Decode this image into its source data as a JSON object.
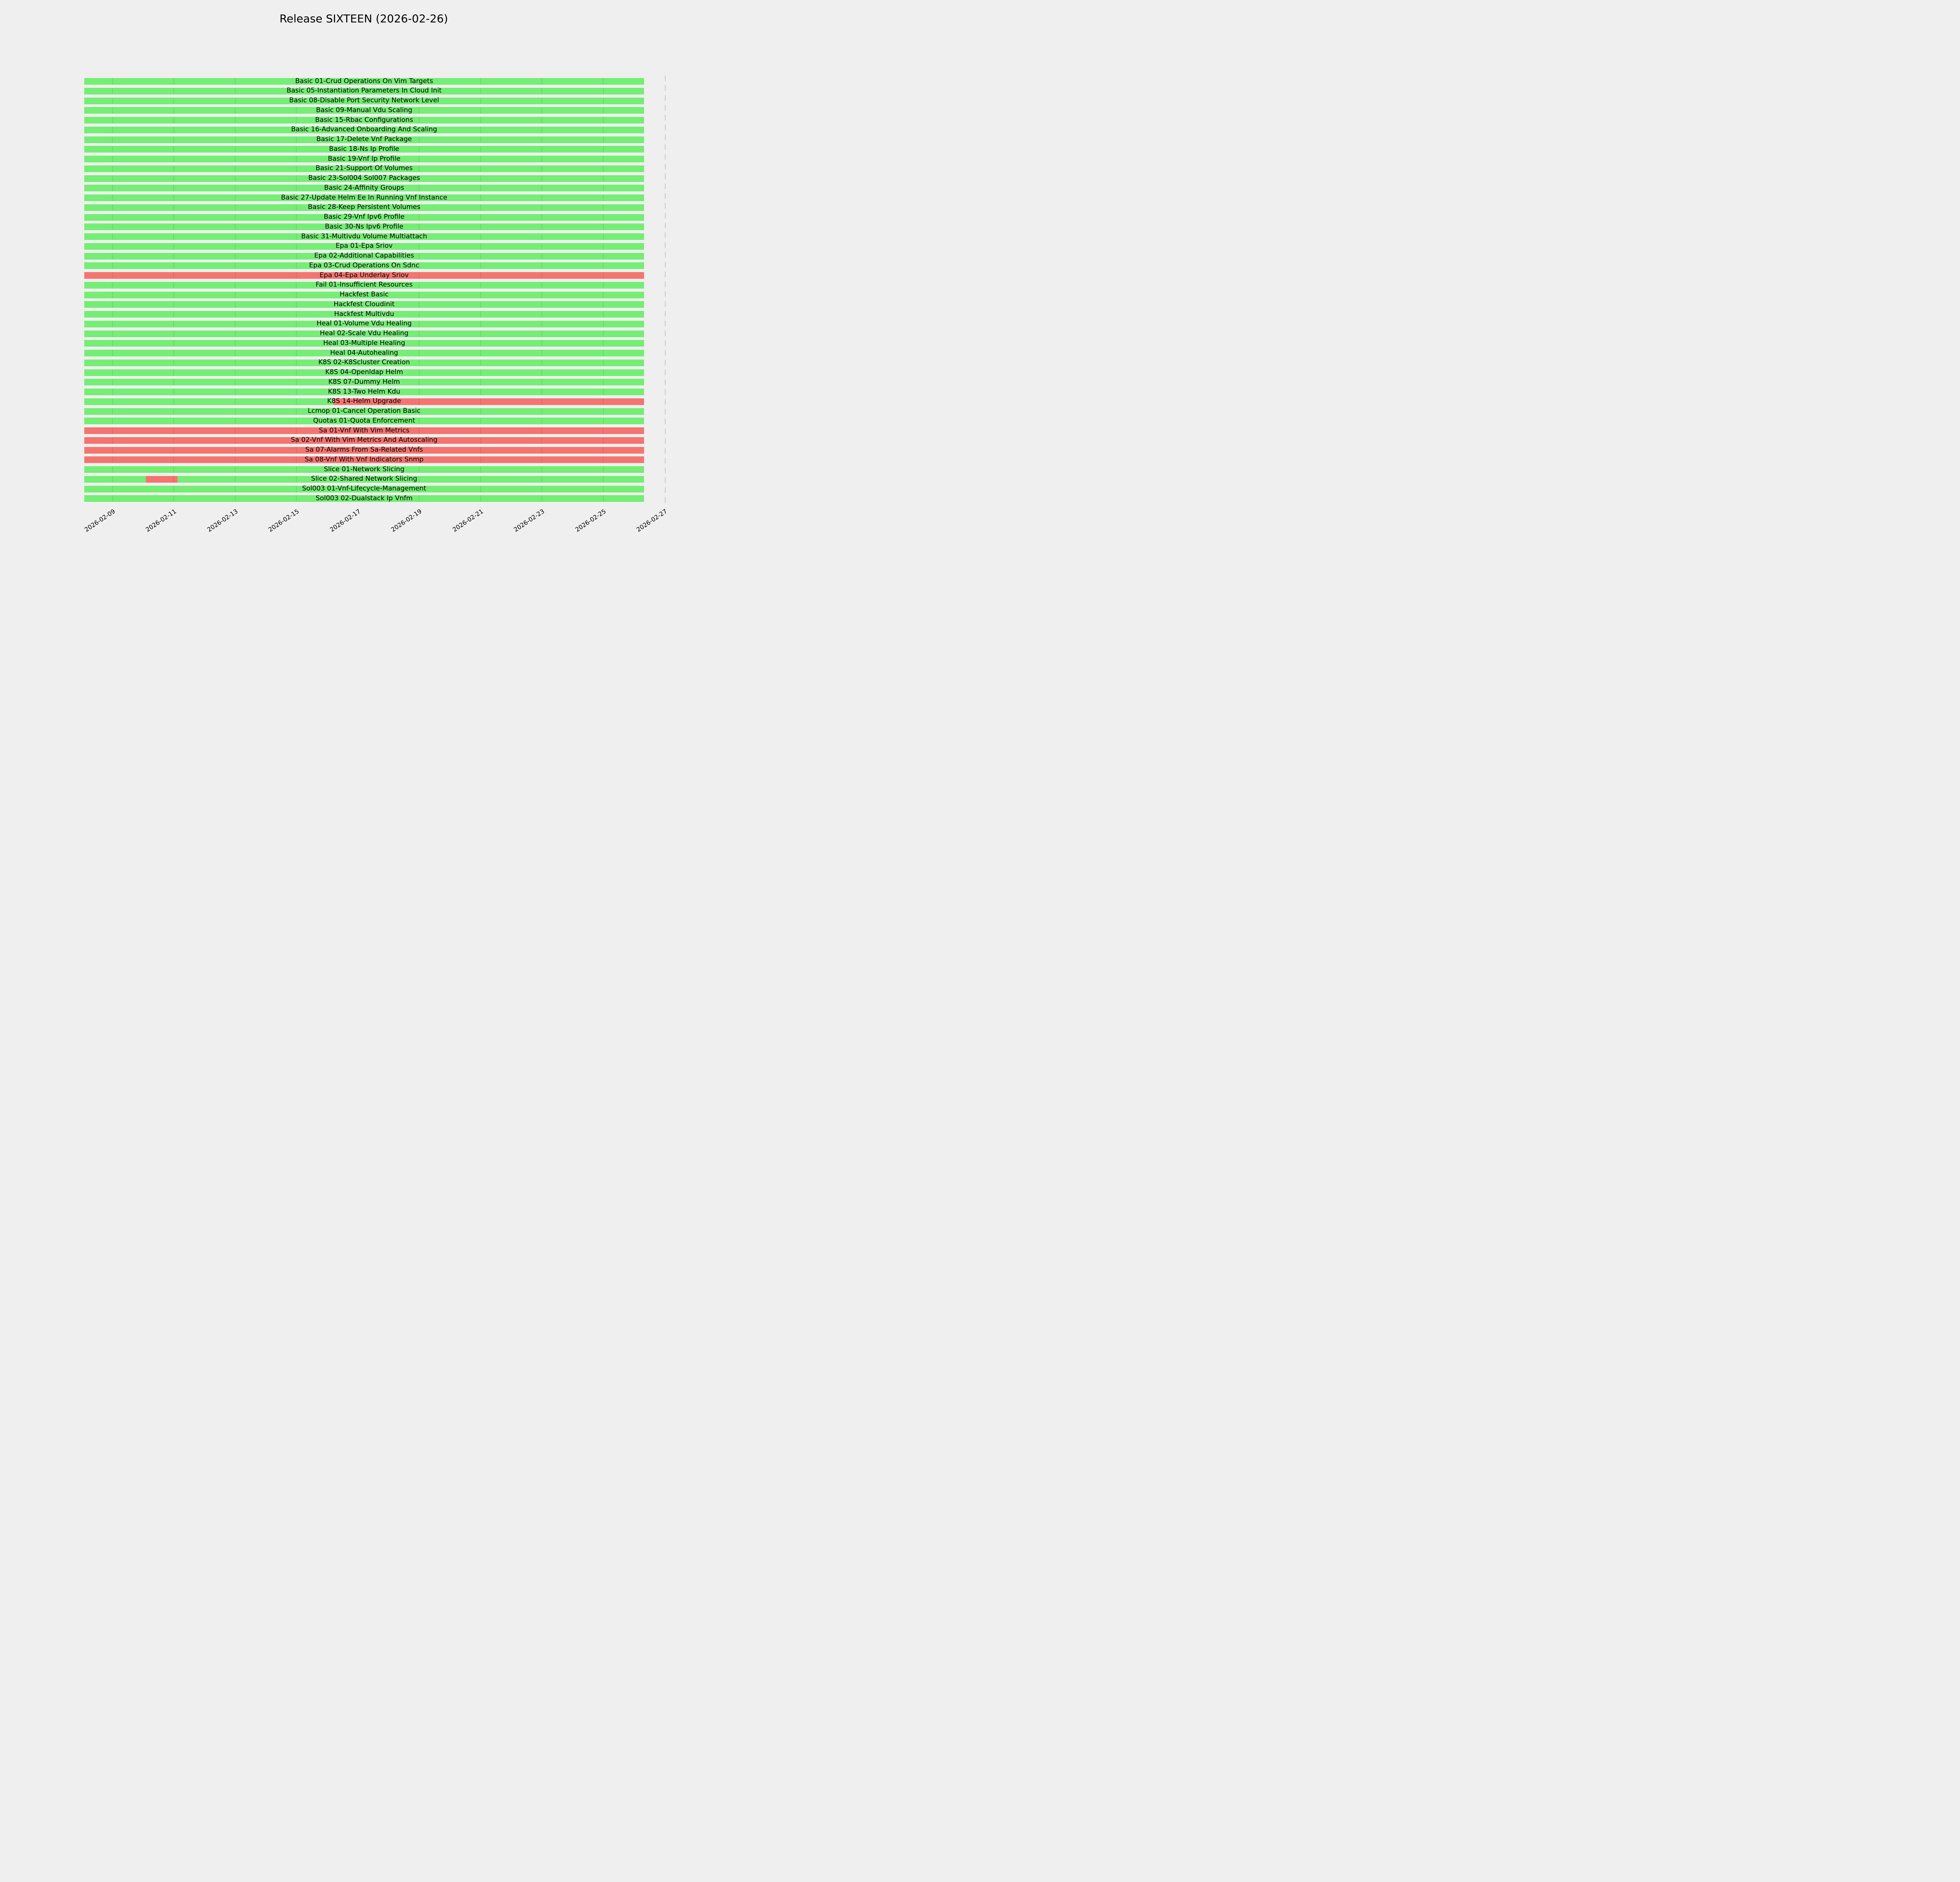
{
  "title": "Release SIXTEEN (2026-02-26)",
  "colors": {
    "pass": "#74ee74",
    "fail": "#f4756f",
    "background": "#efefef",
    "grid_overlay": "rgba(0,0,0,0.08)",
    "deadline_line": "#c9c9c9",
    "text": "#000000"
  },
  "chart_data": {
    "type": "gantt",
    "title": "Release SIXTEEN (2026-02-26)",
    "status_legend": {
      "pass": "green bar",
      "fail": "red bar"
    },
    "x_axis": {
      "origin_date": "2026-02-08",
      "unit": "days_from_origin",
      "domain_days": [
        0.08,
        19.7
      ],
      "grid": "vertical lines at ticks, visible over bars only",
      "tick_rotation_deg": 34,
      "ticks": [
        {
          "label": "2026-02-09",
          "day": 1
        },
        {
          "label": "2026-02-11",
          "day": 3
        },
        {
          "label": "2026-02-13",
          "day": 5
        },
        {
          "label": "2026-02-15",
          "day": 7
        },
        {
          "label": "2026-02-17",
          "day": 9
        },
        {
          "label": "2026-02-19",
          "day": 11
        },
        {
          "label": "2026-02-21",
          "day": 13
        },
        {
          "label": "2026-02-23",
          "day": 15
        },
        {
          "label": "2026-02-25",
          "day": 17
        },
        {
          "label": "2026-02-27",
          "day": 19
        }
      ]
    },
    "deadline_day": 19.02,
    "bar_start_day": 0.08,
    "bar_end_day": 18.33,
    "tasks": [
      {
        "name": "Basic 01-Crud Operations On Vim Targets",
        "segments": [
          {
            "from": 0.08,
            "to": 18.33,
            "status": "pass"
          }
        ]
      },
      {
        "name": "Basic 05-Instantiation Parameters In Cloud Init",
        "segments": [
          {
            "from": 0.08,
            "to": 18.33,
            "status": "pass"
          }
        ]
      },
      {
        "name": "Basic 08-Disable Port Security Network Level",
        "segments": [
          {
            "from": 0.08,
            "to": 18.33,
            "status": "pass"
          }
        ]
      },
      {
        "name": "Basic 09-Manual Vdu Scaling",
        "segments": [
          {
            "from": 0.08,
            "to": 18.33,
            "status": "pass"
          }
        ]
      },
      {
        "name": "Basic 15-Rbac Configurations",
        "segments": [
          {
            "from": 0.08,
            "to": 18.33,
            "status": "pass"
          }
        ]
      },
      {
        "name": "Basic 16-Advanced Onboarding And Scaling",
        "segments": [
          {
            "from": 0.08,
            "to": 18.33,
            "status": "pass"
          }
        ]
      },
      {
        "name": "Basic 17-Delete Vnf Package",
        "segments": [
          {
            "from": 0.08,
            "to": 18.33,
            "status": "pass"
          }
        ]
      },
      {
        "name": "Basic 18-Ns Ip Profile",
        "segments": [
          {
            "from": 0.08,
            "to": 18.33,
            "status": "pass"
          }
        ]
      },
      {
        "name": "Basic 19-Vnf Ip Profile",
        "segments": [
          {
            "from": 0.08,
            "to": 18.33,
            "status": "pass"
          }
        ]
      },
      {
        "name": "Basic 21-Support Of Volumes",
        "segments": [
          {
            "from": 0.08,
            "to": 18.33,
            "status": "pass"
          }
        ]
      },
      {
        "name": "Basic 23-Sol004 Sol007 Packages",
        "segments": [
          {
            "from": 0.08,
            "to": 18.33,
            "status": "pass"
          }
        ]
      },
      {
        "name": "Basic 24-Affinity Groups",
        "segments": [
          {
            "from": 0.08,
            "to": 18.33,
            "status": "pass"
          }
        ]
      },
      {
        "name": "Basic 27-Update Helm Ee In Running Vnf Instance",
        "segments": [
          {
            "from": 0.08,
            "to": 18.33,
            "status": "pass"
          }
        ]
      },
      {
        "name": "Basic 28-Keep Persistent Volumes",
        "segments": [
          {
            "from": 0.08,
            "to": 18.33,
            "status": "pass"
          }
        ]
      },
      {
        "name": "Basic 29-Vnf Ipv6 Profile",
        "segments": [
          {
            "from": 0.08,
            "to": 18.33,
            "status": "pass"
          }
        ]
      },
      {
        "name": "Basic 30-Ns Ipv6 Profile",
        "segments": [
          {
            "from": 0.08,
            "to": 18.33,
            "status": "pass"
          }
        ]
      },
      {
        "name": "Basic 31-Multivdu Volume Multiattach",
        "segments": [
          {
            "from": 0.08,
            "to": 18.33,
            "status": "pass"
          }
        ]
      },
      {
        "name": "Epa 01-Epa Sriov",
        "segments": [
          {
            "from": 0.08,
            "to": 18.33,
            "status": "pass"
          }
        ]
      },
      {
        "name": "Epa 02-Additional Capabilities",
        "segments": [
          {
            "from": 0.08,
            "to": 18.33,
            "status": "pass"
          }
        ]
      },
      {
        "name": "Epa 03-Crud Operations On Sdnc",
        "segments": [
          {
            "from": 0.08,
            "to": 18.33,
            "status": "pass"
          }
        ]
      },
      {
        "name": "Epa 04-Epa Underlay Sriov",
        "segments": [
          {
            "from": 0.08,
            "to": 18.33,
            "status": "fail"
          }
        ]
      },
      {
        "name": "Fail 01-Insufficient Resources",
        "segments": [
          {
            "from": 0.08,
            "to": 18.33,
            "status": "pass"
          }
        ]
      },
      {
        "name": "Hackfest Basic",
        "segments": [
          {
            "from": 0.08,
            "to": 18.33,
            "status": "pass"
          }
        ]
      },
      {
        "name": "Hackfest Cloudinit",
        "segments": [
          {
            "from": 0.08,
            "to": 18.33,
            "status": "pass"
          }
        ]
      },
      {
        "name": "Hackfest Multivdu",
        "segments": [
          {
            "from": 0.08,
            "to": 18.33,
            "status": "pass"
          }
        ]
      },
      {
        "name": "Heal 01-Volume Vdu Healing",
        "segments": [
          {
            "from": 0.08,
            "to": 18.33,
            "status": "pass"
          }
        ]
      },
      {
        "name": "Heal 02-Scale Vdu Healing",
        "segments": [
          {
            "from": 0.08,
            "to": 18.33,
            "status": "pass"
          }
        ]
      },
      {
        "name": "Heal 03-Multiple Healing",
        "segments": [
          {
            "from": 0.08,
            "to": 18.33,
            "status": "pass"
          }
        ]
      },
      {
        "name": "Heal 04-Autohealing",
        "segments": [
          {
            "from": 0.08,
            "to": 18.33,
            "status": "pass"
          }
        ]
      },
      {
        "name": "K8S 02-K8Scluster Creation",
        "segments": [
          {
            "from": 0.08,
            "to": 18.33,
            "status": "pass"
          }
        ]
      },
      {
        "name": "K8S 04-Openldap Helm",
        "segments": [
          {
            "from": 0.08,
            "to": 18.33,
            "status": "pass"
          }
        ]
      },
      {
        "name": "K8S 07-Dummy Helm",
        "segments": [
          {
            "from": 0.08,
            "to": 18.33,
            "status": "pass"
          }
        ]
      },
      {
        "name": "K8S 13-Two Helm Kdu",
        "segments": [
          {
            "from": 0.08,
            "to": 18.33,
            "status": "pass"
          }
        ]
      },
      {
        "name": "K8S 14-Helm Upgrade",
        "segments": [
          {
            "from": 0.08,
            "to": 8.21,
            "status": "pass"
          },
          {
            "from": 8.21,
            "to": 18.33,
            "status": "fail"
          }
        ]
      },
      {
        "name": "Lcmop 01-Cancel Operation Basic",
        "segments": [
          {
            "from": 0.08,
            "to": 18.33,
            "status": "pass"
          }
        ]
      },
      {
        "name": "Quotas 01-Quota Enforcement",
        "segments": [
          {
            "from": 0.08,
            "to": 18.33,
            "status": "pass"
          }
        ]
      },
      {
        "name": "Sa 01-Vnf With Vim Metrics",
        "segments": [
          {
            "from": 0.08,
            "to": 18.33,
            "status": "fail"
          }
        ]
      },
      {
        "name": "Sa 02-Vnf With Vim Metrics And Autoscaling",
        "segments": [
          {
            "from": 0.08,
            "to": 18.33,
            "status": "fail"
          }
        ]
      },
      {
        "name": "Sa 07-Alarms From Sa-Related Vnfs",
        "segments": [
          {
            "from": 0.08,
            "to": 18.33,
            "status": "fail"
          }
        ]
      },
      {
        "name": "Sa 08-Vnf With Vnf Indicators Snmp",
        "segments": [
          {
            "from": 0.08,
            "to": 18.33,
            "status": "fail"
          }
        ]
      },
      {
        "name": "Slice 01-Network Slicing",
        "segments": [
          {
            "from": 0.08,
            "to": 18.33,
            "status": "pass"
          }
        ]
      },
      {
        "name": "Slice 02-Shared Network Slicing",
        "segments": [
          {
            "from": 0.08,
            "to": 2.09,
            "status": "pass"
          },
          {
            "from": 2.09,
            "to": 3.12,
            "status": "fail"
          },
          {
            "from": 3.12,
            "to": 18.33,
            "status": "pass"
          }
        ]
      },
      {
        "name": "Sol003 01-Vnf-Lifecycle-Management",
        "segments": [
          {
            "from": 0.08,
            "to": 18.33,
            "status": "pass"
          }
        ]
      },
      {
        "name": "Sol003 02-Dualstack Ip Vnfm",
        "segments": [
          {
            "from": 0.08,
            "to": 18.33,
            "status": "pass"
          }
        ]
      }
    ]
  }
}
